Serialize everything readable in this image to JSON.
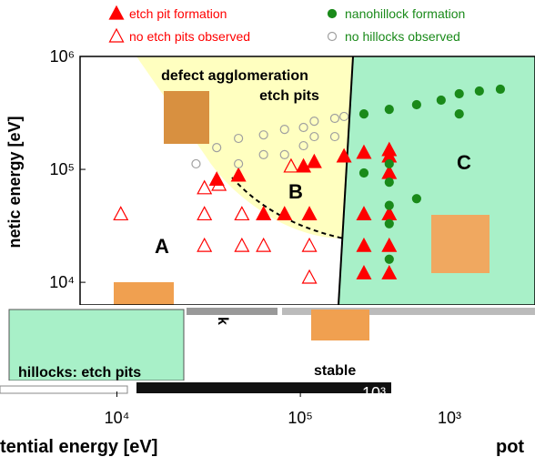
{
  "chart_data": {
    "type": "scatter",
    "log_x": true,
    "log_y": true,
    "xlabel": "tential energy [eV]",
    "xlabel_fragment": "pot",
    "ylabel": "netic energy [eV]",
    "xlim": [
      6300,
      1900000
    ],
    "ylim": [
      6300,
      1000000
    ],
    "xticks": [
      {
        "value": 10000,
        "label": "10⁴"
      },
      {
        "value": 100000,
        "label": "10⁵"
      }
    ],
    "yticks": [
      {
        "value": 10000,
        "label": "10⁴"
      },
      {
        "value": 100000,
        "label": "10⁵"
      },
      {
        "value": 1000000,
        "label": "10⁶"
      }
    ],
    "annotations": [
      "defect agglomeration",
      "etch pits",
      "A",
      "B",
      "C"
    ],
    "series": [
      {
        "name": "etch pit formation",
        "color": "#ff0000",
        "marker": "triangle",
        "filled": true,
        "x": [
          35000,
          46000,
          63000,
          82000,
          112000,
          104000,
          119000,
          173000,
          222000,
          305000,
          305000,
          222000,
          305000,
          222000,
          305000,
          222000,
          305000,
          305000
        ],
        "y": [
          81000,
          88000,
          40000,
          40000,
          40000,
          106000,
          116000,
          130000,
          140000,
          148000,
          130000,
          40000,
          40000,
          21000,
          21000,
          12000,
          12000,
          93000
        ]
      },
      {
        "name": "no etch pits observed",
        "color": "#ff0000",
        "marker": "triangle",
        "filled": false,
        "x": [
          10500,
          30000,
          36000,
          30000,
          48000,
          63000,
          30000,
          48000,
          63000,
          112000,
          112000,
          89000
        ],
        "y": [
          40000,
          68000,
          73000,
          40000,
          40000,
          40000,
          21000,
          21000,
          21000,
          21000,
          11000,
          106000
        ]
      },
      {
        "name": "nanohillock formation",
        "color": "#1a8a1a",
        "marker": "circle",
        "filled": true,
        "x": [
          222000,
          305000,
          430000,
          585000,
          734000,
          945000,
          1230000,
          222000,
          305000,
          305000,
          305000,
          430000,
          305000,
          305000,
          734000
        ],
        "y": [
          310000,
          340000,
          374000,
          410000,
          467000,
          494000,
          513000,
          93000,
          112000,
          77000,
          48000,
          55000,
          33000,
          16000,
          310000
        ]
      },
      {
        "name": "no hillocks observed",
        "color": "#a0a0a0",
        "marker": "circle",
        "filled": false,
        "x": [
          27000,
          35000,
          46000,
          63000,
          82000,
          104000,
          119000,
          154000,
          173000,
          46000,
          63000,
          82000,
          104000,
          119000,
          154000
        ],
        "y": [
          112000,
          156000,
          188000,
          202000,
          226000,
          235000,
          267000,
          283000,
          294000,
          112000,
          135000,
          135000,
          162000,
          195000,
          195000
        ]
      }
    ]
  },
  "overlay": {
    "texts": [
      "hillocks: etch pits",
      "stable",
      "k",
      "10³",
      "10³"
    ]
  }
}
